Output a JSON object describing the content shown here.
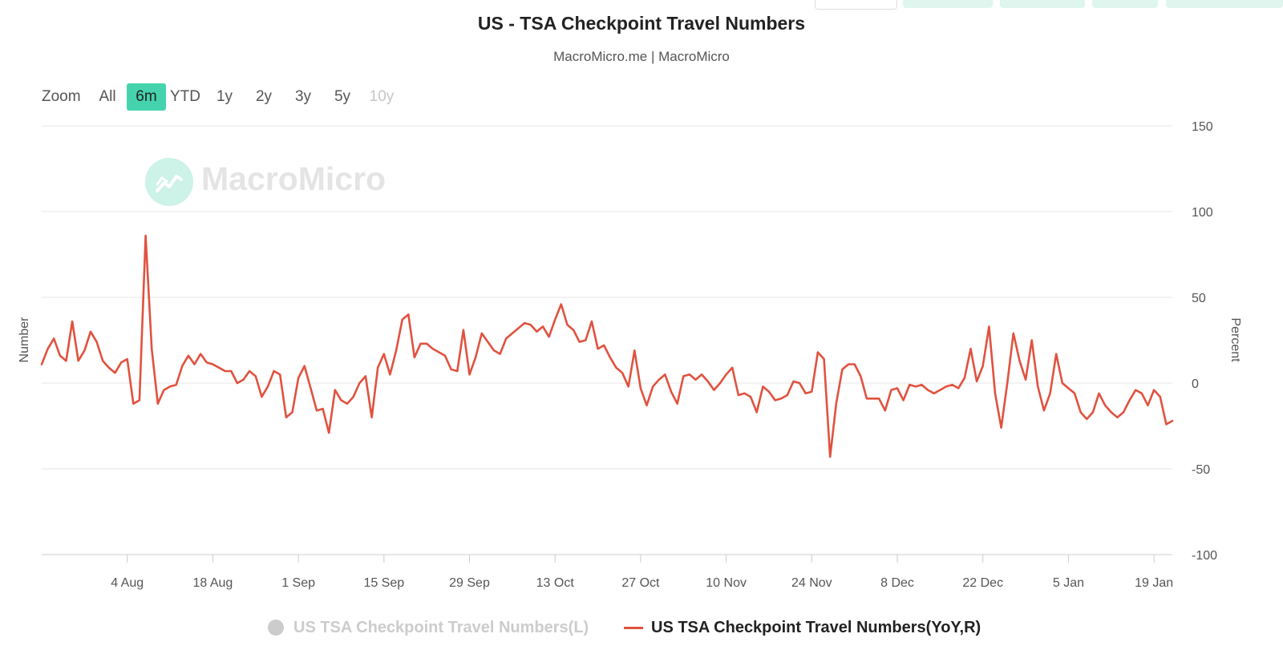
{
  "chart_data": {
    "type": "line",
    "title": "US - TSA Checkpoint Travel Numbers",
    "subtitle": "MacroMicro.me | MacroMicro",
    "watermark": "MacroMicro",
    "zoom": {
      "label": "Zoom",
      "options": [
        "All",
        "6m",
        "YTD",
        "1y",
        "2y",
        "3y",
        "5y",
        "10y"
      ],
      "selected": "6m",
      "disabled": [
        "10y"
      ]
    },
    "y_left_label": "Number",
    "y_right_label": "Percent",
    "y_right_ticks": [
      "150",
      "100",
      "50",
      "0",
      "-50",
      "-100"
    ],
    "y_right_range": [
      -100,
      150
    ],
    "x_ticks": [
      "4 Aug",
      "18 Aug",
      "1 Sep",
      "15 Sep",
      "29 Sep",
      "13 Oct",
      "27 Oct",
      "10 Nov",
      "24 Nov",
      "8 Dec",
      "22 Dec",
      "5 Jan",
      "19 Jan"
    ],
    "x_range": [
      "2024-07-21",
      "2025-01-22"
    ],
    "grid": true,
    "legend_position": "bottom",
    "series": [
      {
        "name": "US TSA Checkpoint Travel Numbers(L)",
        "axis": "left",
        "color": "#cccccc",
        "hidden": true,
        "values": []
      },
      {
        "name": "US TSA Checkpoint Travel Numbers(YoY,R)",
        "axis": "right",
        "color": "#e0523f",
        "hidden": false,
        "points": [
          [
            "2024-07-21",
            11
          ],
          [
            "2024-07-22",
            20
          ],
          [
            "2024-07-23",
            26
          ],
          [
            "2024-07-24",
            16
          ],
          [
            "2024-07-25",
            13
          ],
          [
            "2024-07-26",
            36
          ],
          [
            "2024-07-27",
            13
          ],
          [
            "2024-07-28",
            19
          ],
          [
            "2024-07-29",
            30
          ],
          [
            "2024-07-30",
            24
          ],
          [
            "2024-07-31",
            13
          ],
          [
            "2024-08-01",
            9
          ],
          [
            "2024-08-02",
            6
          ],
          [
            "2024-08-03",
            12
          ],
          [
            "2024-08-04",
            14
          ],
          [
            "2024-08-05",
            -12
          ],
          [
            "2024-08-06",
            -10
          ],
          [
            "2024-08-07",
            86
          ],
          [
            "2024-08-08",
            20
          ],
          [
            "2024-08-09",
            -12
          ],
          [
            "2024-08-10",
            -4
          ],
          [
            "2024-08-11",
            -2
          ],
          [
            "2024-08-12",
            -1
          ],
          [
            "2024-08-13",
            10
          ],
          [
            "2024-08-14",
            16
          ],
          [
            "2024-08-15",
            11
          ],
          [
            "2024-08-16",
            17
          ],
          [
            "2024-08-17",
            12
          ],
          [
            "2024-08-18",
            11
          ],
          [
            "2024-08-19",
            9
          ],
          [
            "2024-08-20",
            7
          ],
          [
            "2024-08-21",
            7
          ],
          [
            "2024-08-22",
            0
          ],
          [
            "2024-08-23",
            2
          ],
          [
            "2024-08-24",
            7
          ],
          [
            "2024-08-25",
            4
          ],
          [
            "2024-08-26",
            -8
          ],
          [
            "2024-08-27",
            -2
          ],
          [
            "2024-08-28",
            7
          ],
          [
            "2024-08-29",
            5
          ],
          [
            "2024-08-30",
            -20
          ],
          [
            "2024-08-31",
            -17
          ],
          [
            "2024-09-01",
            3
          ],
          [
            "2024-09-02",
            10
          ],
          [
            "2024-09-03",
            -3
          ],
          [
            "2024-09-04",
            -16
          ],
          [
            "2024-09-05",
            -15
          ],
          [
            "2024-09-06",
            -29
          ],
          [
            "2024-09-07",
            -4
          ],
          [
            "2024-09-08",
            -10
          ],
          [
            "2024-09-09",
            -12
          ],
          [
            "2024-09-10",
            -8
          ],
          [
            "2024-09-11",
            0
          ],
          [
            "2024-09-12",
            4
          ],
          [
            "2024-09-13",
            -20
          ],
          [
            "2024-09-14",
            9
          ],
          [
            "2024-09-15",
            17
          ],
          [
            "2024-09-16",
            5
          ],
          [
            "2024-09-17",
            19
          ],
          [
            "2024-09-18",
            37
          ],
          [
            "2024-09-19",
            40
          ],
          [
            "2024-09-20",
            15
          ],
          [
            "2024-09-21",
            23
          ],
          [
            "2024-09-22",
            23
          ],
          [
            "2024-09-23",
            20
          ],
          [
            "2024-09-24",
            18
          ],
          [
            "2024-09-25",
            16
          ],
          [
            "2024-09-26",
            8
          ],
          [
            "2024-09-27",
            7
          ],
          [
            "2024-09-28",
            31
          ],
          [
            "2024-09-29",
            5
          ],
          [
            "2024-09-30",
            15
          ],
          [
            "2024-10-01",
            29
          ],
          [
            "2024-10-02",
            24
          ],
          [
            "2024-10-03",
            19
          ],
          [
            "2024-10-04",
            17
          ],
          [
            "2024-10-05",
            26
          ],
          [
            "2024-10-06",
            29
          ],
          [
            "2024-10-07",
            32
          ],
          [
            "2024-10-08",
            35
          ],
          [
            "2024-10-09",
            34
          ],
          [
            "2024-10-10",
            30
          ],
          [
            "2024-10-11",
            33
          ],
          [
            "2024-10-12",
            27
          ],
          [
            "2024-10-13",
            37
          ],
          [
            "2024-10-14",
            46
          ],
          [
            "2024-10-15",
            34
          ],
          [
            "2024-10-16",
            31
          ],
          [
            "2024-10-17",
            24
          ],
          [
            "2024-10-18",
            25
          ],
          [
            "2024-10-19",
            36
          ],
          [
            "2024-10-20",
            20
          ],
          [
            "2024-10-21",
            22
          ],
          [
            "2024-10-22",
            15
          ],
          [
            "2024-10-23",
            9
          ],
          [
            "2024-10-24",
            6
          ],
          [
            "2024-10-25",
            -2
          ],
          [
            "2024-10-26",
            19
          ],
          [
            "2024-10-27",
            -3
          ],
          [
            "2024-10-28",
            -13
          ],
          [
            "2024-10-29",
            -2
          ],
          [
            "2024-10-30",
            2
          ],
          [
            "2024-10-31",
            5
          ],
          [
            "2024-11-01",
            -5
          ],
          [
            "2024-11-02",
            -12
          ],
          [
            "2024-11-03",
            4
          ],
          [
            "2024-11-04",
            5
          ],
          [
            "2024-11-05",
            2
          ],
          [
            "2024-11-06",
            5
          ],
          [
            "2024-11-07",
            1
          ],
          [
            "2024-11-08",
            -4
          ],
          [
            "2024-11-09",
            0
          ],
          [
            "2024-11-10",
            5
          ],
          [
            "2024-11-11",
            9
          ],
          [
            "2024-11-12",
            -7
          ],
          [
            "2024-11-13",
            -6
          ],
          [
            "2024-11-14",
            -8
          ],
          [
            "2024-11-15",
            -17
          ],
          [
            "2024-11-16",
            -2
          ],
          [
            "2024-11-17",
            -5
          ],
          [
            "2024-11-18",
            -10
          ],
          [
            "2024-11-19",
            -9
          ],
          [
            "2024-11-20",
            -7
          ],
          [
            "2024-11-21",
            1
          ],
          [
            "2024-11-22",
            0
          ],
          [
            "2024-11-23",
            -6
          ],
          [
            "2024-11-24",
            -5
          ],
          [
            "2024-11-25",
            18
          ],
          [
            "2024-11-26",
            14
          ],
          [
            "2024-11-27",
            -43
          ],
          [
            "2024-11-28",
            -12
          ],
          [
            "2024-11-29",
            8
          ],
          [
            "2024-11-30",
            11
          ],
          [
            "2024-12-01",
            11
          ],
          [
            "2024-12-02",
            4
          ],
          [
            "2024-12-03",
            -9
          ],
          [
            "2024-12-04",
            -9
          ],
          [
            "2024-12-05",
            -9
          ],
          [
            "2024-12-06",
            -16
          ],
          [
            "2024-12-07",
            -4
          ],
          [
            "2024-12-08",
            -3
          ],
          [
            "2024-12-09",
            -10
          ],
          [
            "2024-12-10",
            -1
          ],
          [
            "2024-12-11",
            -2
          ],
          [
            "2024-12-12",
            -1
          ],
          [
            "2024-12-13",
            -4
          ],
          [
            "2024-12-14",
            -6
          ],
          [
            "2024-12-15",
            -4
          ],
          [
            "2024-12-16",
            -2
          ],
          [
            "2024-12-17",
            -1
          ],
          [
            "2024-12-18",
            -3
          ],
          [
            "2024-12-19",
            3
          ],
          [
            "2024-12-20",
            20
          ],
          [
            "2024-12-21",
            1
          ],
          [
            "2024-12-22",
            10
          ],
          [
            "2024-12-23",
            33
          ],
          [
            "2024-12-24",
            -6
          ],
          [
            "2024-12-25",
            -26
          ],
          [
            "2024-12-26",
            0
          ],
          [
            "2024-12-27",
            29
          ],
          [
            "2024-12-28",
            13
          ],
          [
            "2024-12-29",
            2
          ],
          [
            "2024-12-30",
            25
          ],
          [
            "2024-12-31",
            -2
          ],
          [
            "2025-01-01",
            -16
          ],
          [
            "2025-01-02",
            -6
          ],
          [
            "2025-01-03",
            17
          ],
          [
            "2025-01-04",
            0
          ],
          [
            "2025-01-05",
            -3
          ],
          [
            "2025-01-06",
            -6
          ],
          [
            "2025-01-07",
            -17
          ],
          [
            "2025-01-08",
            -21
          ],
          [
            "2025-01-09",
            -17
          ],
          [
            "2025-01-10",
            -6
          ],
          [
            "2025-01-11",
            -13
          ],
          [
            "2025-01-12",
            -17
          ],
          [
            "2025-01-13",
            -20
          ],
          [
            "2025-01-14",
            -17
          ],
          [
            "2025-01-15",
            -10
          ],
          [
            "2025-01-16",
            -4
          ],
          [
            "2025-01-17",
            -6
          ],
          [
            "2025-01-18",
            -13
          ],
          [
            "2025-01-19",
            -4
          ],
          [
            "2025-01-20",
            -8
          ],
          [
            "2025-01-21",
            -24
          ],
          [
            "2025-01-22",
            -22
          ]
        ]
      }
    ]
  }
}
